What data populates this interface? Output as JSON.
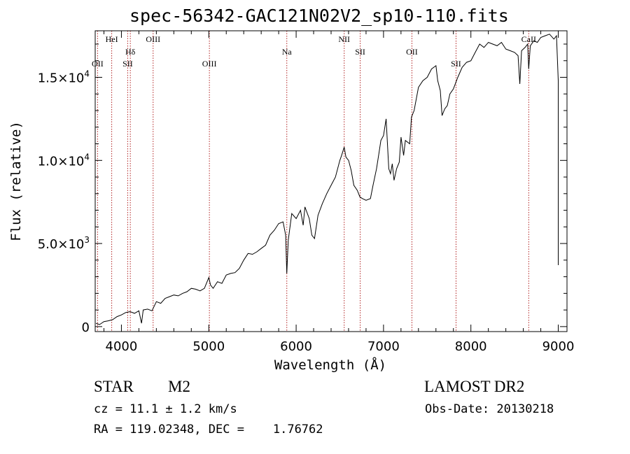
{
  "chart_data": {
    "type": "line",
    "title": "spec-56342-GAC121N02V2_sp10-110.fits",
    "xlabel": "Wavelength (Å)",
    "ylabel": "Flux (relative)",
    "xlim": [
      3700,
      9100
    ],
    "ylim": [
      -300,
      17800
    ],
    "xticks": [
      4000,
      5000,
      6000,
      7000,
      8000,
      9000
    ],
    "xtick_labels": [
      "4000",
      "5000",
      "6000",
      "7000",
      "8000",
      "9000"
    ],
    "yticks": [
      0,
      5000,
      10000,
      15000
    ],
    "ytick_labels": [
      {
        "mant": "0",
        "exp": ""
      },
      {
        "mant": "5.0×10",
        "exp": "3"
      },
      {
        "mant": "1.0×10",
        "exp": "4"
      },
      {
        "mant": "1.5×10",
        "exp": "4"
      }
    ],
    "grid": false,
    "legend": "none",
    "line_color": "#000000",
    "marker_color": "#b22222",
    "lines": [
      {
        "label": "OII",
        "wave": 3727,
        "row": 2
      },
      {
        "label": "HeI",
        "wave": 3889,
        "row": 0
      },
      {
        "label": "SII",
        "wave": 4072,
        "row": 2
      },
      {
        "label": "Hδ",
        "wave": 4102,
        "row": 1
      },
      {
        "label": "OIII",
        "wave": 4363,
        "row": 0
      },
      {
        "label": "OIII",
        "wave": 5007,
        "row": 2
      },
      {
        "label": "Na",
        "wave": 5893,
        "row": 1
      },
      {
        "label": "NII",
        "wave": 6550,
        "row": 0
      },
      {
        "label": "SII",
        "wave": 6733,
        "row": 1
      },
      {
        "label": "OII",
        "wave": 7325,
        "row": 1
      },
      {
        "label": "SII",
        "wave": 7830,
        "row": 2
      },
      {
        "label": "CaII",
        "wave": 8662,
        "row": 0
      }
    ],
    "spectrum": [
      [
        3710,
        200
      ],
      [
        3750,
        120
      ],
      [
        3800,
        300
      ],
      [
        3850,
        350
      ],
      [
        3900,
        420
      ],
      [
        3950,
        600
      ],
      [
        4000,
        700
      ],
      [
        4050,
        850
      ],
      [
        4100,
        900
      ],
      [
        4150,
        800
      ],
      [
        4200,
        950
      ],
      [
        4230,
        200
      ],
      [
        4250,
        1000
      ],
      [
        4300,
        1050
      ],
      [
        4350,
        950
      ],
      [
        4400,
        1500
      ],
      [
        4450,
        1400
      ],
      [
        4500,
        1700
      ],
      [
        4550,
        1800
      ],
      [
        4600,
        1900
      ],
      [
        4650,
        1850
      ],
      [
        4700,
        2000
      ],
      [
        4750,
        2100
      ],
      [
        4800,
        2300
      ],
      [
        4850,
        2250
      ],
      [
        4900,
        2150
      ],
      [
        4950,
        2300
      ],
      [
        5000,
        2950
      ],
      [
        5020,
        2500
      ],
      [
        5050,
        2300
      ],
      [
        5100,
        2700
      ],
      [
        5150,
        2600
      ],
      [
        5200,
        3100
      ],
      [
        5250,
        3200
      ],
      [
        5300,
        3250
      ],
      [
        5350,
        3500
      ],
      [
        5400,
        4000
      ],
      [
        5450,
        4400
      ],
      [
        5500,
        4350
      ],
      [
        5550,
        4500
      ],
      [
        5600,
        4700
      ],
      [
        5650,
        4900
      ],
      [
        5700,
        5500
      ],
      [
        5750,
        5800
      ],
      [
        5800,
        6200
      ],
      [
        5850,
        6300
      ],
      [
        5880,
        5500
      ],
      [
        5893,
        3200
      ],
      [
        5910,
        5200
      ],
      [
        5950,
        6800
      ],
      [
        6000,
        6500
      ],
      [
        6050,
        7000
      ],
      [
        6080,
        6100
      ],
      [
        6100,
        7200
      ],
      [
        6150,
        6500
      ],
      [
        6180,
        5500
      ],
      [
        6210,
        5300
      ],
      [
        6250,
        6700
      ],
      [
        6300,
        7400
      ],
      [
        6350,
        8000
      ],
      [
        6400,
        8500
      ],
      [
        6450,
        9000
      ],
      [
        6500,
        10000
      ],
      [
        6520,
        10300
      ],
      [
        6550,
        10800
      ],
      [
        6570,
        10200
      ],
      [
        6600,
        10000
      ],
      [
        6630,
        9400
      ],
      [
        6660,
        8500
      ],
      [
        6700,
        8200
      ],
      [
        6730,
        7800
      ],
      [
        6760,
        7700
      ],
      [
        6800,
        7600
      ],
      [
        6850,
        7700
      ],
      [
        6880,
        8500
      ],
      [
        6920,
        9500
      ],
      [
        6950,
        10500
      ],
      [
        6970,
        11200
      ],
      [
        7000,
        11500
      ],
      [
        7030,
        12500
      ],
      [
        7060,
        9500
      ],
      [
        7080,
        9200
      ],
      [
        7100,
        9800
      ],
      [
        7120,
        8800
      ],
      [
        7150,
        9500
      ],
      [
        7180,
        9900
      ],
      [
        7200,
        11400
      ],
      [
        7230,
        10300
      ],
      [
        7250,
        11200
      ],
      [
        7300,
        11000
      ],
      [
        7320,
        12600
      ],
      [
        7350,
        13000
      ],
      [
        7400,
        14400
      ],
      [
        7450,
        14800
      ],
      [
        7500,
        15000
      ],
      [
        7550,
        15500
      ],
      [
        7600,
        15700
      ],
      [
        7620,
        14800
      ],
      [
        7650,
        14200
      ],
      [
        7670,
        12700
      ],
      [
        7700,
        13100
      ],
      [
        7730,
        13300
      ],
      [
        7760,
        14000
      ],
      [
        7800,
        14300
      ],
      [
        7850,
        15000
      ],
      [
        7900,
        15600
      ],
      [
        7950,
        15900
      ],
      [
        8000,
        16000
      ],
      [
        8050,
        16500
      ],
      [
        8100,
        17000
      ],
      [
        8150,
        16800
      ],
      [
        8200,
        17100
      ],
      [
        8250,
        17000
      ],
      [
        8300,
        16900
      ],
      [
        8350,
        17100
      ],
      [
        8400,
        16700
      ],
      [
        8450,
        16600
      ],
      [
        8500,
        16500
      ],
      [
        8540,
        16300
      ],
      [
        8560,
        14600
      ],
      [
        8580,
        16600
      ],
      [
        8620,
        16800
      ],
      [
        8650,
        17000
      ],
      [
        8662,
        15500
      ],
      [
        8680,
        16900
      ],
      [
        8720,
        17200
      ],
      [
        8760,
        17100
      ],
      [
        8800,
        17400
      ],
      [
        8850,
        17500
      ],
      [
        8900,
        17600
      ],
      [
        8950,
        17300
      ],
      [
        8980,
        17500
      ],
      [
        9000,
        14800
      ],
      [
        9000,
        9500
      ],
      [
        9000,
        3700
      ]
    ]
  },
  "footer": {
    "object_type": "STAR",
    "subclass": "M2",
    "survey": "LAMOST DR2",
    "redshift": "cz = 11.1 ± 1.2 km/s",
    "obs_date": "Obs-Date: 20130218",
    "coords": "RA = 119.02348, DEC =    1.76762"
  }
}
